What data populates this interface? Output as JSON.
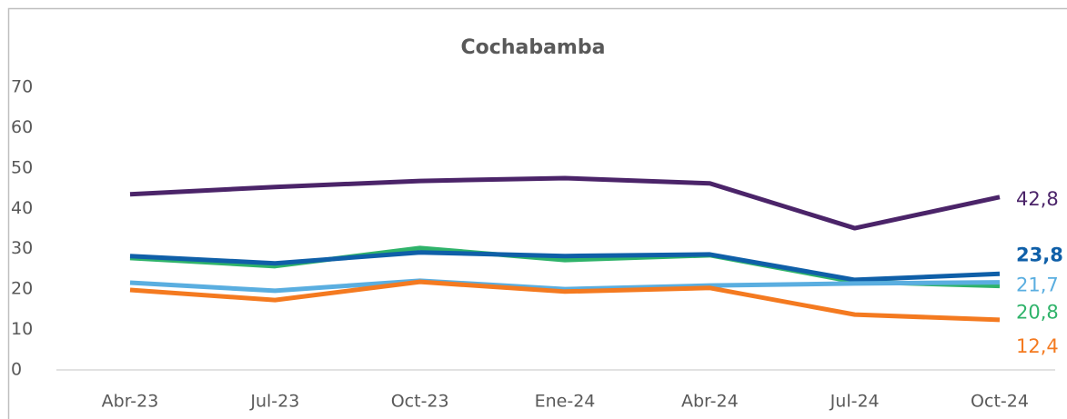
{
  "chart_data": {
    "type": "line",
    "title": "Cochabamba",
    "categories": [
      "Abr-23",
      "Jul-23",
      "Oct-23",
      "Ene-24",
      "Abr-24",
      "Jul-24",
      "Oct-24"
    ],
    "series": [
      {
        "color": "#4b2469",
        "values": [
          43.5,
          45.3,
          46.8,
          47.5,
          46.2,
          35.1,
          42.8
        ],
        "value_labels": [
          null,
          null,
          null,
          null,
          null,
          null,
          "42,8"
        ]
      },
      {
        "color": "#2fb36a",
        "values": [
          27.7,
          25.7,
          30.2,
          27.2,
          28.4,
          21.8,
          20.8
        ],
        "value_labels": [
          null,
          null,
          null,
          null,
          null,
          null,
          "20,8"
        ]
      },
      {
        "color": "#0f5fa8",
        "values": [
          28.2,
          26.4,
          29.1,
          28.2,
          28.6,
          22.3,
          23.8
        ],
        "value_labels": [
          null,
          null,
          null,
          null,
          null,
          null,
          "23,8"
        ],
        "label_bold": true
      },
      {
        "color": "#5aaee0",
        "values": [
          21.6,
          19.6,
          22.1,
          20.0,
          20.9,
          21.4,
          21.7
        ],
        "value_labels": [
          null,
          null,
          null,
          null,
          null,
          null,
          "21,7"
        ]
      },
      {
        "color": "#f47a20",
        "values": [
          19.8,
          17.3,
          21.8,
          19.4,
          20.3,
          13.7,
          12.4
        ],
        "value_labels": [
          null,
          null,
          null,
          null,
          null,
          null,
          "12,4"
        ]
      }
    ],
    "ylim": [
      0,
      70
    ],
    "yticks": [
      0,
      10,
      20,
      30,
      40,
      50,
      60,
      70
    ],
    "grid": false
  }
}
